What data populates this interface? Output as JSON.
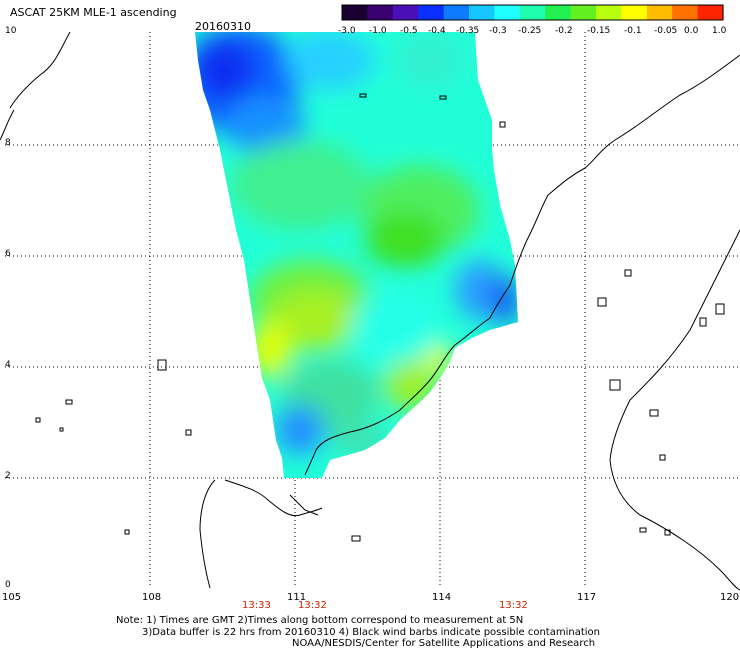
{
  "header": {
    "title": "ASCAT 25KM MLE-1 ascending",
    "date": "20160310"
  },
  "colorbar": {
    "ticks": [
      "-3.0",
      "-1.0",
      "-0.5",
      "-0.4",
      "-0.35",
      "-0.3",
      "-0.25",
      "-0.2",
      "-0.15",
      "-0.1",
      "-0.05",
      "0.0",
      "1.0"
    ],
    "colors": [
      "#1a0030",
      "#3a0070",
      "#4b0fb8",
      "#0b2fff",
      "#0f7bff",
      "#18c6ff",
      "#20ffff",
      "#20ffb0",
      "#22f050",
      "#62f020",
      "#b8ff10",
      "#ffff00",
      "#ffbc00",
      "#ff7200",
      "#ff2400"
    ]
  },
  "axes": {
    "x_ticks": [
      "105",
      "108",
      "111",
      "114",
      "117",
      "120"
    ],
    "y_ticks": [
      "10",
      "8",
      "6",
      "4",
      "2",
      "0"
    ]
  },
  "times": [
    "13:33",
    "13:32",
    "13:32"
  ],
  "notes": {
    "line1": "Note: 1) Times are GMT 2)Times along bottom correspond to measurement at 5N",
    "line2": "3)Data buffer is 22 hrs from 20160310 4) Black wind barbs indicate possible contamination",
    "line3": "NOAA/NESDIS/Center for Satellite Applications and Research"
  }
}
